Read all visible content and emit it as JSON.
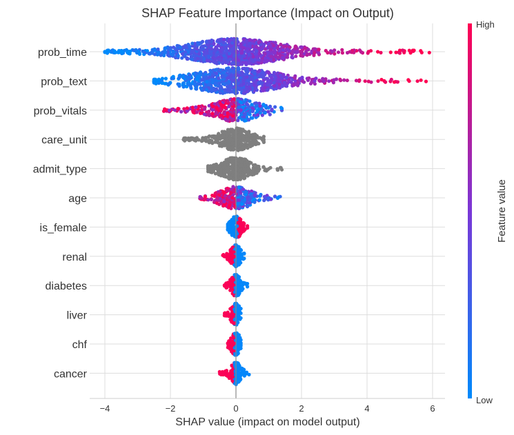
{
  "chart_data": {
    "type": "scatter",
    "subtype": "beeswarm",
    "title": "SHAP Feature Importance (Impact on Output)",
    "xlabel": "SHAP value (impact on model output)",
    "ylabel": "",
    "xlim": [
      -4.4,
      6.4
    ],
    "xticks": [
      -4,
      -2,
      0,
      2,
      4,
      6
    ],
    "grid": true,
    "colorbar": {
      "label": "Feature value",
      "high_label": "High",
      "low_label": "Low",
      "colors": [
        "#008afb",
        "#7a37d7",
        "#ff0052"
      ]
    },
    "neutral_color": "#7f7f7f",
    "features": [
      {
        "name": "prob_time",
        "min": -4.0,
        "max": 5.9,
        "spread": 0.9,
        "n": 1100,
        "colormode": "gradient",
        "high_side": "right"
      },
      {
        "name": "prob_text",
        "min": -2.5,
        "max": 5.8,
        "spread": 0.8,
        "n": 800,
        "colormode": "gradient",
        "high_side": "right"
      },
      {
        "name": "prob_vitals",
        "min": -2.2,
        "max": 1.4,
        "spread": 0.45,
        "n": 380,
        "colormode": "mixed",
        "high_side": "left"
      },
      {
        "name": "care_unit",
        "min": -1.6,
        "max": 0.85,
        "spread": 0.3,
        "n": 420,
        "colormode": "neutral",
        "high_side": "none"
      },
      {
        "name": "admit_type",
        "min": -0.85,
        "max": 1.4,
        "spread": 0.3,
        "n": 420,
        "colormode": "neutral",
        "high_side": "none"
      },
      {
        "name": "age",
        "min": -1.1,
        "max": 1.35,
        "spread": 0.3,
        "n": 320,
        "colormode": "mixed",
        "high_side": "left"
      },
      {
        "name": "is_female",
        "min": -0.25,
        "max": 0.35,
        "spread": 0.1,
        "n": 160,
        "colormode": "binary",
        "high_side": "right"
      },
      {
        "name": "renal",
        "min": -0.4,
        "max": 0.25,
        "spread": 0.08,
        "n": 160,
        "colormode": "binary",
        "high_side": "left"
      },
      {
        "name": "diabetes",
        "min": -0.35,
        "max": 0.35,
        "spread": 0.08,
        "n": 160,
        "colormode": "binary",
        "high_side": "left"
      },
      {
        "name": "liver",
        "min": -0.35,
        "max": 0.15,
        "spread": 0.06,
        "n": 140,
        "colormode": "binary",
        "high_side": "left"
      },
      {
        "name": "chf",
        "min": -0.25,
        "max": 0.15,
        "spread": 0.06,
        "n": 140,
        "colormode": "binary",
        "high_side": "left"
      },
      {
        "name": "cancer",
        "min": -0.5,
        "max": 0.4,
        "spread": 0.08,
        "n": 180,
        "colormode": "binary",
        "high_side": "left"
      }
    ]
  }
}
